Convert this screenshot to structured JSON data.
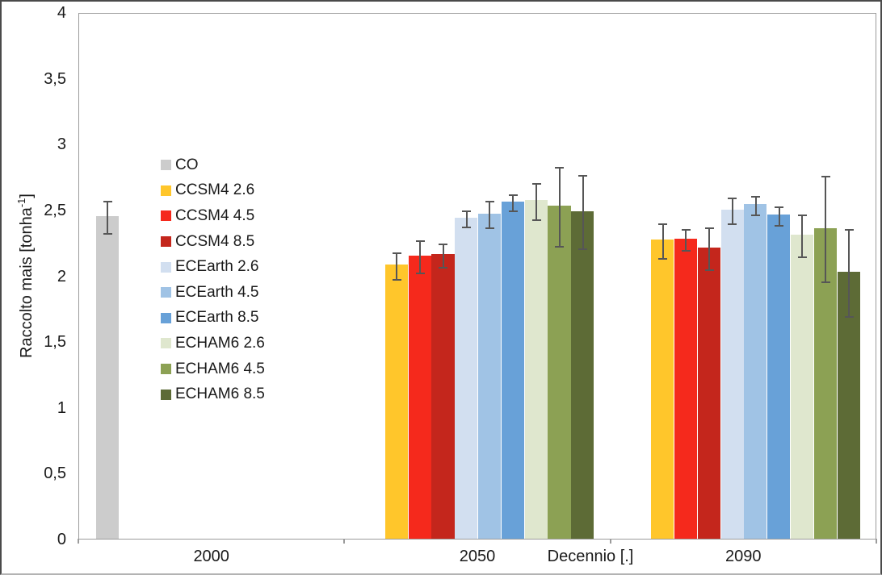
{
  "colors": {
    "axis": "#9B9B9B",
    "error_bar": "#565656",
    "background": "#FFFFFF"
  },
  "y_axis": {
    "title_main": "Raccolto mais [tonha",
    "title_sup": "-1",
    "title_end": "]",
    "tick_labels": [
      "4",
      "3,5",
      "3",
      "2,5",
      "2",
      "1,5",
      "1",
      "0,5",
      "0"
    ]
  },
  "x_axis": {
    "title": "Decennio [.]",
    "category_labels": [
      "2000",
      "2050",
      "2090"
    ]
  },
  "chart_data": {
    "type": "bar",
    "title": "",
    "xlabel": "Decennio [.]",
    "ylabel": "Raccolto mais [tonha-1]",
    "ylim": [
      0,
      4
    ],
    "grid": false,
    "legend_position": "inside-left",
    "error_bars": true,
    "categories": [
      "2000",
      "2050",
      "2090"
    ],
    "series": [
      {
        "name": "CO",
        "color": "#CCCCCC",
        "values": [
          2.45,
          null,
          null
        ],
        "errors": [
          0.12,
          null,
          null
        ]
      },
      {
        "name": "CCSM4 2.6",
        "color": "#FFC62B",
        "values": [
          null,
          2.08,
          2.27
        ],
        "errors": [
          null,
          0.1,
          0.13
        ]
      },
      {
        "name": "CCSM4 4.5",
        "color": "#F5291C",
        "values": [
          null,
          2.15,
          2.28
        ],
        "errors": [
          null,
          0.12,
          0.08
        ]
      },
      {
        "name": "CCSM4 8.5",
        "color": "#C4261C",
        "values": [
          null,
          2.16,
          2.21
        ],
        "errors": [
          null,
          0.09,
          0.16
        ]
      },
      {
        "name": "ECEarth 2.6",
        "color": "#D2DFF0",
        "values": [
          null,
          2.44,
          2.5
        ],
        "errors": [
          null,
          0.06,
          0.1
        ]
      },
      {
        "name": "ECEarth 4.5",
        "color": "#A0C3E5",
        "values": [
          null,
          2.47,
          2.54
        ],
        "errors": [
          null,
          0.1,
          0.07
        ]
      },
      {
        "name": "ECEarth 8.5",
        "color": "#68A1D8",
        "values": [
          null,
          2.56,
          2.46
        ],
        "errors": [
          null,
          0.06,
          0.07
        ]
      },
      {
        "name": "ECHAM6 2.6",
        "color": "#DFE7CE",
        "values": [
          null,
          2.57,
          2.31
        ],
        "errors": [
          null,
          0.14,
          0.16
        ]
      },
      {
        "name": "ECHAM6 4.5",
        "color": "#8CA154",
        "values": [
          null,
          2.53,
          2.36
        ],
        "errors": [
          null,
          0.3,
          0.4
        ]
      },
      {
        "name": "ECHAM6 8.5",
        "color": "#5D6B36",
        "values": [
          null,
          2.49,
          2.03
        ],
        "errors": [
          null,
          0.28,
          0.33
        ]
      }
    ]
  }
}
